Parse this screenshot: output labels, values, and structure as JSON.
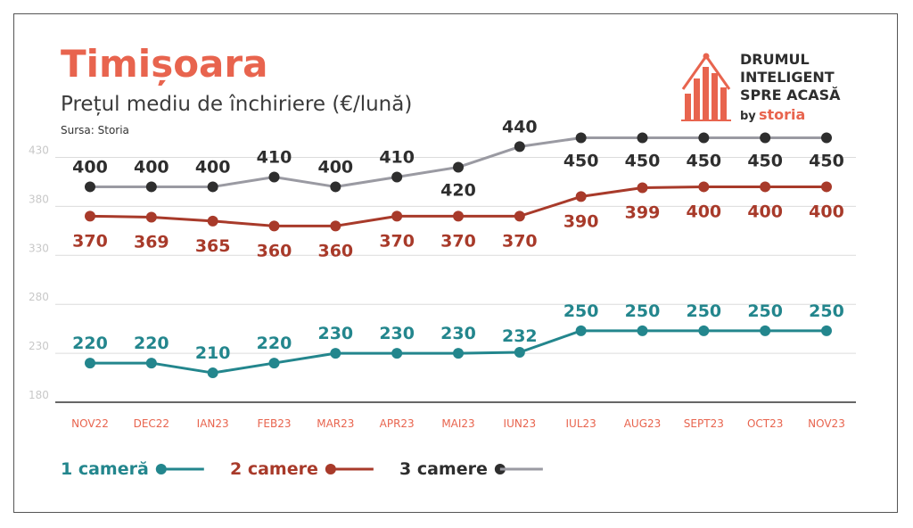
{
  "header": {
    "title": "Timișoara",
    "subtitle": "Prețul mediu de închiriere (€/lună)",
    "source": "Sursa: Storia"
  },
  "logo": {
    "line1": "DRUMUL",
    "line2": "INTELIGENT",
    "line3": "SPRE ACASĂ",
    "by": "by",
    "brand": "storia",
    "icon": "house-bar-chart-icon",
    "accent_color": "#e8644e"
  },
  "chart_data": {
    "type": "line",
    "categories": [
      "NOV22",
      "DEC22",
      "IAN23",
      "FEB23",
      "MAR23",
      "APR23",
      "MAI23",
      "IUN23",
      "IUL23",
      "AUG23",
      "SEPT23",
      "OCT23",
      "NOV23"
    ],
    "y_ticks": [
      180,
      230,
      280,
      330,
      380,
      430
    ],
    "ylim": [
      180,
      430
    ],
    "grid": true,
    "legend_position": "bottom-left",
    "series": [
      {
        "name": "1 cameră",
        "color": "#23868d",
        "values": [
          220,
          220,
          210,
          220,
          230,
          230,
          230,
          232,
          250,
          250,
          250,
          250,
          250
        ],
        "plot_values": [
          220,
          220,
          210,
          220,
          230,
          230,
          230,
          231,
          253,
          253,
          253,
          253,
          253
        ]
      },
      {
        "name": "2 camere",
        "color": "#a83a2a",
        "values": [
          370,
          369,
          365,
          360,
          360,
          370,
          370,
          370,
          390,
          399,
          400,
          400,
          400
        ],
        "plot_values": [
          370,
          369,
          365,
          360,
          360,
          370,
          370,
          370,
          390,
          399,
          400,
          400,
          400
        ]
      },
      {
        "name": "3 camere",
        "color": "#2e2e2e",
        "line_color": "#9a9aa2",
        "values": [
          400,
          400,
          400,
          410,
          400,
          410,
          420,
          440,
          450,
          450,
          450,
          450,
          450
        ],
        "plot_values": [
          400,
          400,
          400,
          410,
          400,
          410,
          420,
          441,
          450,
          450,
          450,
          450,
          450
        ]
      }
    ]
  }
}
